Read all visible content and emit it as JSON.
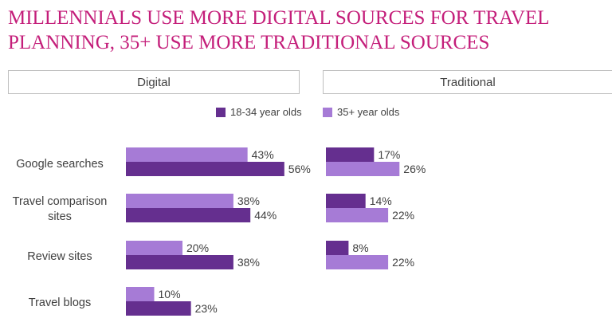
{
  "title_line1": "MILLENNIALS USE MORE DIGITAL SOURCES FOR TRAVEL",
  "title_line2": "PLANNING, 35+ USE MORE TRADITIONAL SOURCES",
  "panels": {
    "digital": "Digital",
    "traditional": "Traditional"
  },
  "colors": {
    "series_18_34": "#652f8f",
    "series_35_plus": "#a67bd6",
    "title": "#c41e7a"
  },
  "chart_data": {
    "type": "bar",
    "orientation": "horizontal",
    "title": "MILLENNIALS USE MORE DIGITAL SOURCES FOR TRAVEL PLANNING, 35+ USE MORE TRADITIONAL SOURCES",
    "legend": [
      "18-34 year olds",
      "35+ year olds"
    ],
    "legend_position": "top",
    "value_format": "percent",
    "xlim": [
      0,
      60
    ],
    "panels": [
      {
        "name": "Digital",
        "categories": [
          "Google searches",
          "Travel comparison sites",
          "Review sites",
          "Travel blogs"
        ],
        "category_labels": [
          [
            "Google searches"
          ],
          [
            "Travel comparison",
            "sites"
          ],
          [
            "Review sites"
          ],
          [
            "Travel blogs"
          ]
        ],
        "series": [
          {
            "name": "35+ year olds",
            "values": [
              43,
              38,
              20,
              10
            ]
          },
          {
            "name": "18-34 year olds",
            "values": [
              56,
              44,
              38,
              23
            ]
          }
        ]
      },
      {
        "name": "Traditional",
        "visible_groups": 3,
        "series": [
          {
            "name": "18-34 year olds",
            "values": [
              17,
              14,
              8
            ]
          },
          {
            "name": "35+ year olds",
            "values": [
              26,
              22,
              22
            ]
          }
        ]
      }
    ]
  }
}
